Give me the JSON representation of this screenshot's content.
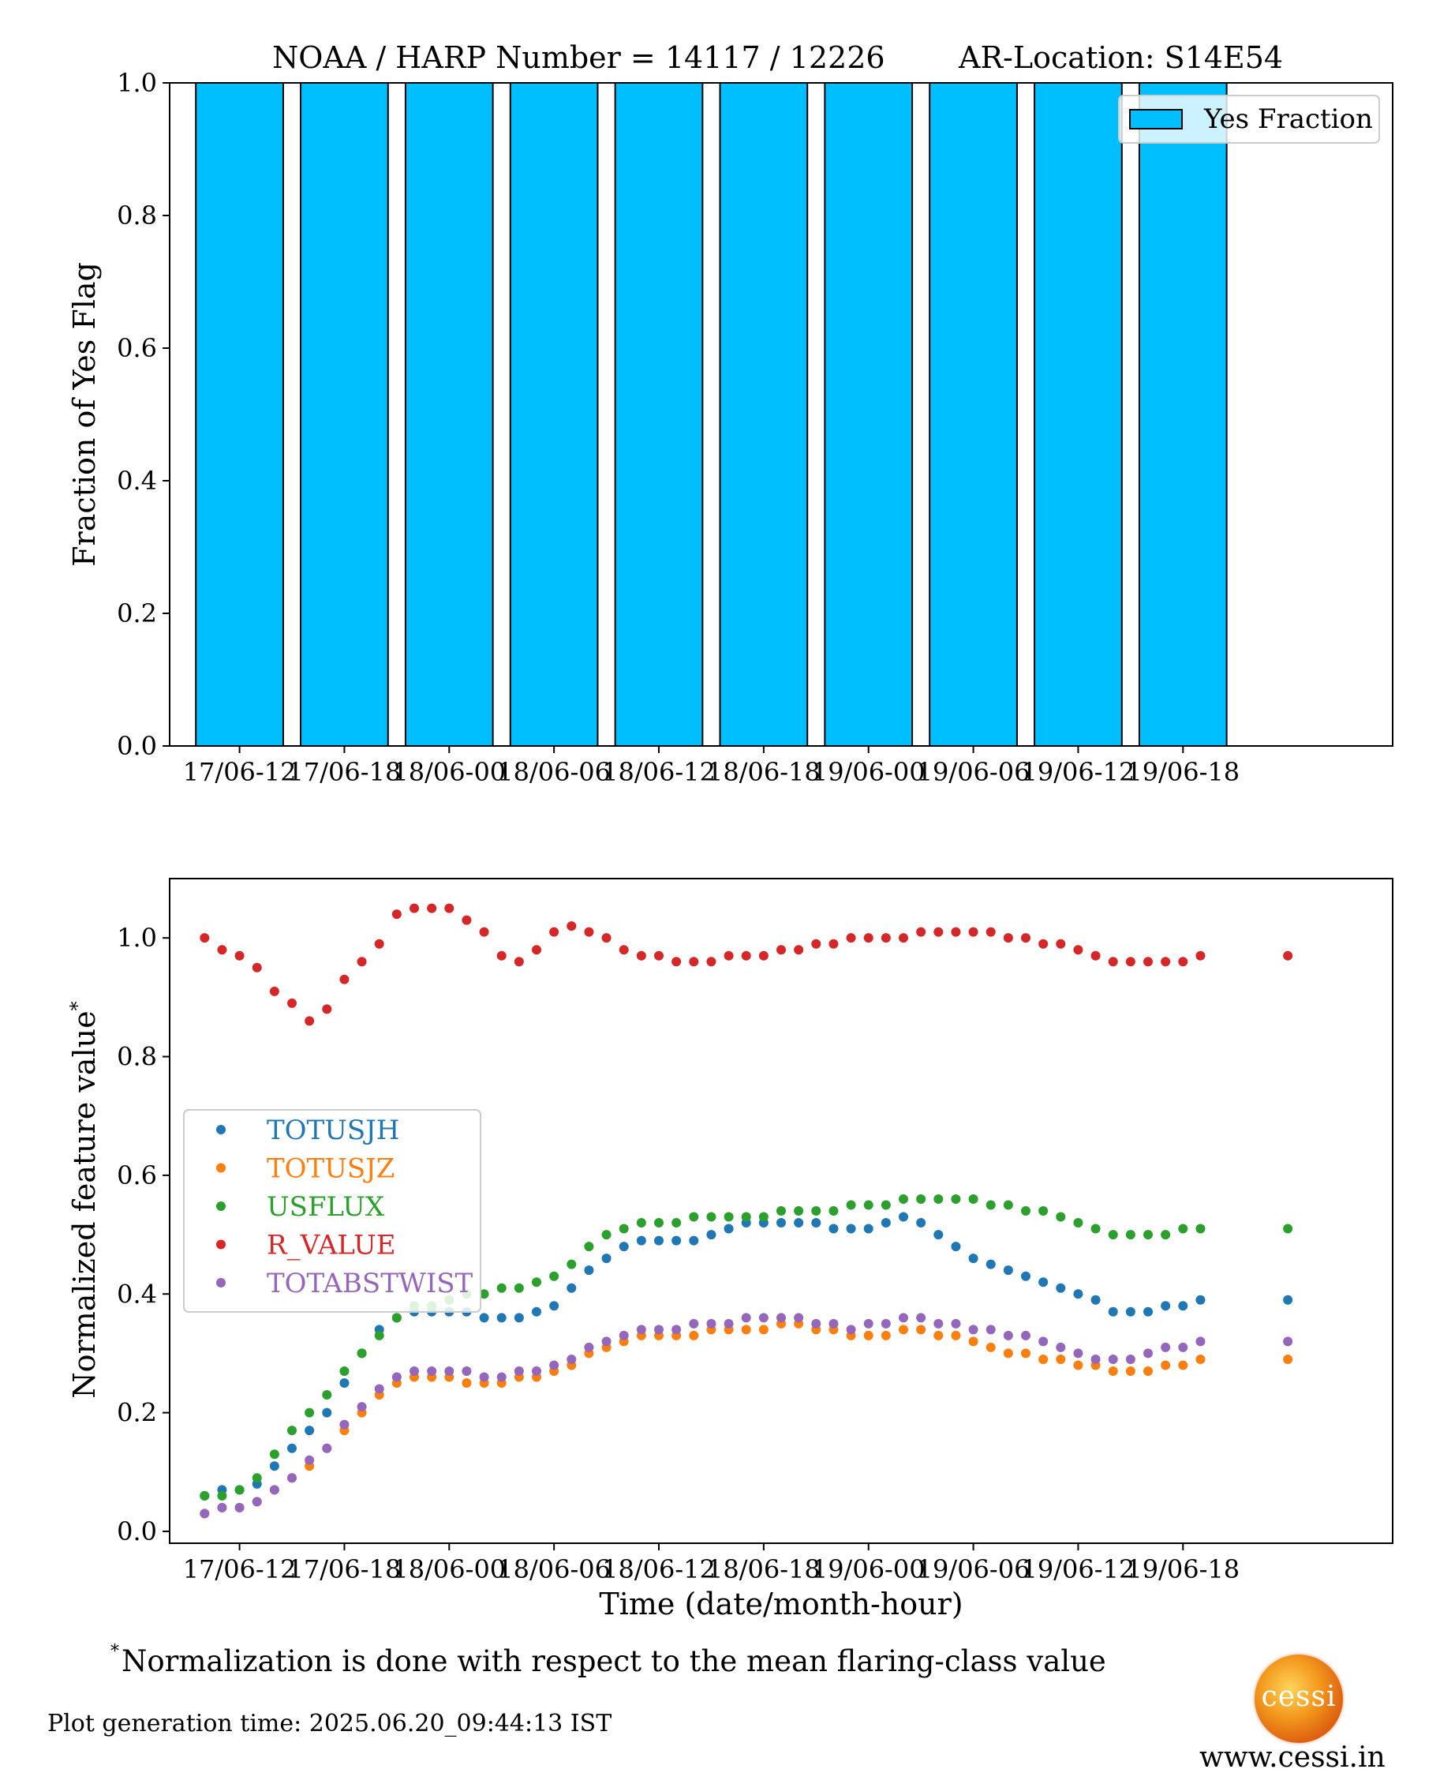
{
  "header": {
    "noaa_harp": "NOAA / HARP Number = 14117 / 12226",
    "ar_location": "AR-Location: S14E54"
  },
  "footnote": {
    "marker": "*",
    "text": "Normalization is done with respect to the mean flaring-class value"
  },
  "generation_time": "Plot generation time: 2025.06.20_09:44:13 IST",
  "logo": {
    "text": "cessi"
  },
  "website": "www.cessi.in",
  "colors": {
    "bar_fill": "#00bfff",
    "TOTUSJH": "#1f77b4",
    "TOTUSJZ": "#ff7f0e",
    "USFLUX": "#2ca02c",
    "R_VALUE": "#d62728",
    "TOTABSTWIST": "#9467bd"
  },
  "chart_data": [
    {
      "type": "bar",
      "ylabel": "Fraction of Yes Flag",
      "xlabel": "",
      "ylim": [
        0,
        1.0
      ],
      "xlim": [
        "17/06-08",
        "20/06-06"
      ],
      "yticks": [
        "0.0",
        "0.2",
        "0.4",
        "0.6",
        "0.8",
        "1.0"
      ],
      "xticks": [
        "17/06-12",
        "17/06-18",
        "18/06-00",
        "18/06-06",
        "18/06-12",
        "18/06-18",
        "19/06-00",
        "19/06-06",
        "19/06-12",
        "19/06-18"
      ],
      "legend": {
        "position": "top-right",
        "entries": [
          "Yes Fraction"
        ]
      },
      "categories": [
        "17/06-12",
        "17/06-18",
        "18/06-00",
        "18/06-06",
        "18/06-12",
        "18/06-18",
        "19/06-00",
        "19/06-06",
        "19/06-12",
        "19/06-18"
      ],
      "series": [
        {
          "name": "Yes Fraction",
          "values": [
            1.0,
            1.0,
            1.0,
            1.0,
            1.0,
            1.0,
            1.0,
            1.0,
            1.0,
            1.0
          ]
        }
      ]
    },
    {
      "type": "scatter",
      "xlabel": "Time (date/month-hour)",
      "ylabel": "Normalized feature value",
      "ylabel_marker": "*",
      "ylim": [
        -0.02,
        1.1
      ],
      "xlim": [
        "17/06-08",
        "20/06-06"
      ],
      "yticks": [
        "0.0",
        "0.2",
        "0.4",
        "0.6",
        "0.8",
        "1.0"
      ],
      "xticks": [
        "17/06-12",
        "17/06-18",
        "18/06-00",
        "18/06-06",
        "18/06-12",
        "18/06-18",
        "19/06-00",
        "19/06-06",
        "19/06-12",
        "19/06-18"
      ],
      "legend": {
        "position": "center-left",
        "entries": [
          "TOTUSJH",
          "TOTUSJZ",
          "USFLUX",
          "R_VALUE",
          "TOTABSTWIST"
        ]
      },
      "x": [
        "17/06-10",
        "17/06-11",
        "17/06-12",
        "17/06-13",
        "17/06-14",
        "17/06-15",
        "17/06-16",
        "17/06-17",
        "17/06-18",
        "17/06-19",
        "17/06-20",
        "17/06-21",
        "17/06-22",
        "17/06-23",
        "18/06-00",
        "18/06-01",
        "18/06-02",
        "18/06-03",
        "18/06-04",
        "18/06-05",
        "18/06-06",
        "18/06-07",
        "18/06-08",
        "18/06-09",
        "18/06-10",
        "18/06-11",
        "18/06-12",
        "18/06-13",
        "18/06-14",
        "18/06-15",
        "18/06-16",
        "18/06-17",
        "18/06-18",
        "18/06-19",
        "18/06-20",
        "18/06-21",
        "18/06-22",
        "18/06-23",
        "19/06-00",
        "19/06-01",
        "19/06-02",
        "19/06-03",
        "19/06-04",
        "19/06-05",
        "19/06-06",
        "19/06-07",
        "19/06-08",
        "19/06-09",
        "19/06-10",
        "19/06-11",
        "19/06-12",
        "19/06-13",
        "19/06-14",
        "19/06-15",
        "19/06-16",
        "19/06-17",
        "19/06-18",
        "19/06-19",
        "20/06-00"
      ],
      "series": [
        {
          "name": "TOTUSJH",
          "values": [
            0.06,
            0.07,
            0.07,
            0.08,
            0.11,
            0.14,
            0.17,
            0.2,
            0.25,
            0.3,
            0.34,
            0.36,
            0.37,
            0.37,
            0.37,
            0.37,
            0.36,
            0.36,
            0.36,
            0.37,
            0.38,
            0.41,
            0.44,
            0.46,
            0.48,
            0.49,
            0.49,
            0.49,
            0.49,
            0.5,
            0.51,
            0.52,
            0.52,
            0.52,
            0.52,
            0.52,
            0.51,
            0.51,
            0.51,
            0.52,
            0.53,
            0.52,
            0.5,
            0.48,
            0.46,
            0.45,
            0.44,
            0.43,
            0.42,
            0.41,
            0.4,
            0.39,
            0.37,
            0.37,
            0.37,
            0.38,
            0.38,
            0.39,
            0.39
          ]
        },
        {
          "name": "TOTUSJZ",
          "values": [
            0.03,
            0.04,
            0.04,
            0.05,
            0.07,
            0.09,
            0.11,
            0.14,
            0.17,
            0.2,
            0.23,
            0.25,
            0.26,
            0.26,
            0.26,
            0.25,
            0.25,
            0.25,
            0.26,
            0.26,
            0.27,
            0.28,
            0.3,
            0.31,
            0.32,
            0.33,
            0.33,
            0.33,
            0.33,
            0.34,
            0.34,
            0.34,
            0.34,
            0.35,
            0.35,
            0.34,
            0.34,
            0.33,
            0.33,
            0.33,
            0.34,
            0.34,
            0.33,
            0.33,
            0.32,
            0.31,
            0.3,
            0.3,
            0.29,
            0.29,
            0.28,
            0.28,
            0.27,
            0.27,
            0.27,
            0.28,
            0.28,
            0.29,
            0.29
          ]
        },
        {
          "name": "USFLUX",
          "values": [
            0.06,
            0.06,
            0.07,
            0.09,
            0.13,
            0.17,
            0.2,
            0.23,
            0.27,
            0.3,
            0.33,
            0.36,
            0.38,
            0.38,
            0.39,
            0.4,
            0.4,
            0.41,
            0.41,
            0.42,
            0.43,
            0.45,
            0.48,
            0.5,
            0.51,
            0.52,
            0.52,
            0.52,
            0.53,
            0.53,
            0.53,
            0.53,
            0.53,
            0.54,
            0.54,
            0.54,
            0.54,
            0.55,
            0.55,
            0.55,
            0.56,
            0.56,
            0.56,
            0.56,
            0.56,
            0.55,
            0.55,
            0.54,
            0.54,
            0.53,
            0.52,
            0.51,
            0.5,
            0.5,
            0.5,
            0.5,
            0.51,
            0.51,
            0.51
          ]
        },
        {
          "name": "R_VALUE",
          "values": [
            1.0,
            0.98,
            0.97,
            0.95,
            0.91,
            0.89,
            0.86,
            0.88,
            0.93,
            0.96,
            0.99,
            1.04,
            1.05,
            1.05,
            1.05,
            1.03,
            1.01,
            0.97,
            0.96,
            0.98,
            1.01,
            1.02,
            1.01,
            1.0,
            0.98,
            0.97,
            0.97,
            0.96,
            0.96,
            0.96,
            0.97,
            0.97,
            0.97,
            0.98,
            0.98,
            0.99,
            0.99,
            1.0,
            1.0,
            1.0,
            1.0,
            1.01,
            1.01,
            1.01,
            1.01,
            1.01,
            1.0,
            1.0,
            0.99,
            0.99,
            0.98,
            0.97,
            0.96,
            0.96,
            0.96,
            0.96,
            0.96,
            0.97,
            0.97
          ]
        },
        {
          "name": "TOTABSTWIST",
          "values": [
            0.03,
            0.04,
            0.04,
            0.05,
            0.07,
            0.09,
            0.12,
            0.14,
            0.18,
            0.21,
            0.24,
            0.26,
            0.27,
            0.27,
            0.27,
            0.27,
            0.26,
            0.26,
            0.27,
            0.27,
            0.28,
            0.29,
            0.31,
            0.32,
            0.33,
            0.34,
            0.34,
            0.34,
            0.35,
            0.35,
            0.35,
            0.36,
            0.36,
            0.36,
            0.36,
            0.35,
            0.35,
            0.34,
            0.35,
            0.35,
            0.36,
            0.36,
            0.35,
            0.35,
            0.34,
            0.34,
            0.33,
            0.33,
            0.32,
            0.31,
            0.3,
            0.29,
            0.29,
            0.29,
            0.3,
            0.31,
            0.31,
            0.32,
            0.32
          ]
        }
      ]
    }
  ]
}
